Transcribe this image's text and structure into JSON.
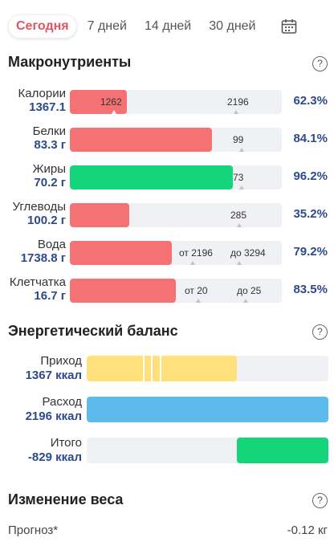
{
  "tabs": [
    {
      "label": "Сегодня",
      "active": true
    },
    {
      "label": "7 дней",
      "active": false
    },
    {
      "label": "14 дней",
      "active": false
    },
    {
      "label": "30 дней",
      "active": false
    }
  ],
  "macros": {
    "title": "Макронутриенты",
    "help": "?",
    "items": [
      {
        "name": "Калории",
        "value": "1367.1",
        "marker_a": "1262",
        "marker_b": "2196",
        "percent": "62.3%",
        "fill_fraction": 0.27,
        "color": "#f47274"
      },
      {
        "name": "Белки",
        "value": "83.3 г",
        "marker_a": "",
        "marker_b": "99",
        "percent": "84.1%",
        "fill_fraction": 0.67,
        "color": "#f47274"
      },
      {
        "name": "Жиры",
        "value": "70.2 г",
        "marker_a": "",
        "marker_b": "73",
        "percent": "96.2%",
        "fill_fraction": 0.77,
        "color": "#15d57a"
      },
      {
        "name": "Углеводы",
        "value": "100.2 г",
        "marker_a": "",
        "marker_b": "285",
        "percent": "35.2%",
        "fill_fraction": 0.28,
        "color": "#f47274"
      },
      {
        "name": "Вода",
        "value": "1738.8 г",
        "marker_a": "от 2196",
        "marker_b": "до 3294",
        "percent": "79.2%",
        "fill_fraction": 0.48,
        "color": "#f47274"
      },
      {
        "name": "Клетчатка",
        "value": "16.7 г",
        "marker_a": "от 20",
        "marker_b": "до 25",
        "percent": "83.5%",
        "fill_fraction": 0.5,
        "color": "#f47274"
      }
    ]
  },
  "energy": {
    "title": "Энергетический баланс",
    "help": "?",
    "items": [
      {
        "name": "Приход",
        "value": "1367 ккал",
        "fill_fraction": 0.62,
        "color": "#ffe07a"
      },
      {
        "name": "Расход",
        "value": "2196 ккал",
        "fill_fraction": 1.0,
        "color": "#5cbbec"
      },
      {
        "name": "Итого",
        "value": "-829 ккал",
        "fill_fraction": 0.38,
        "color": "#15d57a"
      }
    ]
  },
  "weight": {
    "title": "Изменение веса",
    "help": "?",
    "forecast_label": "Прогноз*",
    "forecast_value": "-0.12 кг"
  }
}
